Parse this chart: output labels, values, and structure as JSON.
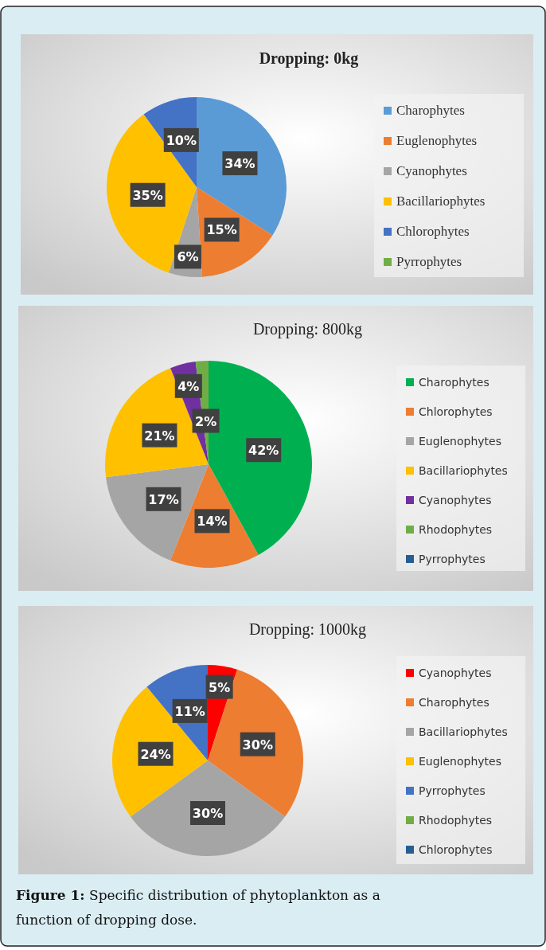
{
  "chart_data": [
    {
      "type": "pie",
      "title": "Dropping: 0kg",
      "categories": [
        "Charophytes",
        "Euglenophytes",
        "Cyanophytes",
        "Bacillariophytes",
        "Chlorophytes",
        "Pyrrophytes"
      ],
      "values": [
        34,
        15,
        6,
        35,
        10,
        0
      ],
      "colors": [
        "#5b9bd5",
        "#ed7d31",
        "#a5a5a5",
        "#ffc000",
        "#4472c4",
        "#70ad47"
      ],
      "value_labels": [
        "34%",
        "15%",
        "6%",
        "35%",
        "10%",
        null
      ],
      "legend": "right"
    },
    {
      "type": "pie",
      "title": "Dropping:  800kg",
      "categories": [
        "Charophytes",
        "Chlorophytes",
        "Euglenophytes",
        "Bacillariophytes",
        "Cyanophytes",
        "Rhodophytes",
        "Pyrrophytes"
      ],
      "values": [
        42,
        14,
        17,
        21,
        4,
        2,
        0
      ],
      "colors": [
        "#00b050",
        "#ed7d31",
        "#a5a5a5",
        "#ffc000",
        "#7030a0",
        "#70ad47",
        "#255e91"
      ],
      "value_labels": [
        "42%",
        "14%",
        "17%",
        "21%",
        "4%",
        "2%",
        null
      ],
      "legend": "right"
    },
    {
      "type": "pie",
      "title": "Dropping:  1000kg",
      "categories": [
        "Cyanophytes",
        "Charophytes",
        "Bacillariophytes",
        "Euglenophytes",
        "Pyrrophytes",
        "Rhodophytes",
        "Chlorophytes"
      ],
      "values": [
        5,
        30,
        30,
        24,
        11,
        0,
        0
      ],
      "colors": [
        "#ff0000",
        "#ed7d31",
        "#a5a5a5",
        "#ffc000",
        "#4472c4",
        "#70ad47",
        "#255e91"
      ],
      "value_labels": [
        "5%",
        "30%",
        "30%",
        "24%",
        "11%",
        null,
        null
      ],
      "legend": "right",
      "annotations": [
        "Figure 1: Specific distribution of phytoplankton as a function of dropping dose."
      ]
    }
  ]
}
